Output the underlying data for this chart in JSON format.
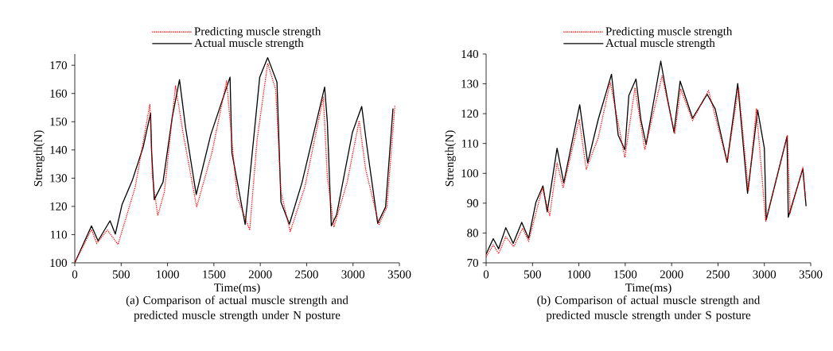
{
  "chart_data": [
    {
      "type": "line",
      "title": "(a) Comparison of actual muscle strength and predicted muscle strength under N posture",
      "xlabel": "Time(ms)",
      "ylabel": "Strength(N)",
      "xlim": [
        0,
        3500
      ],
      "xticks": [
        0,
        500,
        1000,
        1500,
        2000,
        2500,
        3000,
        3500
      ],
      "ylim": [
        100,
        174
      ],
      "yticks": [
        100,
        110,
        120,
        130,
        140,
        150,
        160,
        170
      ],
      "legend": "top",
      "series": [
        {
          "name": "Predicting muscle strength",
          "color": "#ff0000",
          "line_style": "dotted",
          "x": [
            0,
            180,
            237,
            351,
            466,
            651,
            809,
            837,
            894,
            966,
            1086,
            1166,
            1314,
            1480,
            1637,
            1680,
            1751,
            1886,
            1966,
            2080,
            2166,
            2223,
            2323,
            2480,
            2680,
            2723,
            2794,
            2937,
            3066,
            3137,
            3280,
            3366,
            3451
          ],
          "values": [
            100,
            111.8,
            106.9,
            111.6,
            106.5,
            126.8,
            156.1,
            130.4,
            116.7,
            125.1,
            162.7,
            146.3,
            119.8,
            139.2,
            164.5,
            148.1,
            123.3,
            111.6,
            143.7,
            170.7,
            161.4,
            125.1,
            111.1,
            126.8,
            158.7,
            130.4,
            112.7,
            128.6,
            150.3,
            133,
            113.6,
            119.8,
            155.6
          ]
        },
        {
          "name": "Actual muscle strength",
          "color": "#000000",
          "line_style": "solid",
          "x": [
            0,
            180,
            251,
            380,
            437,
            509,
            623,
            737,
            817,
            829,
            857,
            951,
            1051,
            1129,
            1194,
            1309,
            1466,
            1674,
            1694,
            1837,
            1994,
            2080,
            2180,
            2223,
            2314,
            2451,
            2694,
            2723,
            2766,
            2823,
            2994,
            3094,
            3151,
            3266,
            3351,
            3431
          ],
          "values": [
            100,
            113.1,
            107.8,
            114.9,
            110.2,
            120.6,
            129.5,
            141,
            153,
            139,
            122.4,
            128.6,
            151.6,
            164.9,
            148,
            124.2,
            145.4,
            165.8,
            139,
            113.6,
            165.8,
            172.7,
            164,
            121.5,
            113.7,
            128.6,
            162.3,
            149.9,
            113.1,
            117.1,
            146.3,
            155.4,
            141,
            114,
            119.8,
            154.7
          ]
        }
      ]
    },
    {
      "type": "line",
      "title": "(b) Comparison of actual muscle strength and predicted muscle strength under S posture",
      "xlabel": "Time(ms)",
      "ylabel": "Strength(N)",
      "xlim": [
        0,
        3500
      ],
      "xticks": [
        0,
        500,
        1000,
        1500,
        2000,
        2500,
        3000,
        3500
      ],
      "ylim": [
        70,
        140
      ],
      "yticks": [
        70,
        80,
        90,
        100,
        110,
        120,
        130,
        140
      ],
      "legend": "top",
      "series": [
        {
          "name": "Predicting muscle strength",
          "color": "#ff0000",
          "line_style": "dotted",
          "x": [
            0,
            77,
            135,
            212,
            298,
            393,
            458,
            607,
            685,
            765,
            831,
            1003,
            1080,
            1209,
            1338,
            1496,
            1605,
            1711,
            1897,
            2034,
            2097,
            2226,
            2398,
            2599,
            2722,
            2828,
            2914,
            3014,
            3249,
            3278,
            3415,
            3444
          ],
          "values": [
            72,
            76,
            73.1,
            78.7,
            75.4,
            81.6,
            77.2,
            95.1,
            85.8,
            103.5,
            95.1,
            118.1,
            101.4,
            111.9,
            130.5,
            105.3,
            128.7,
            107.9,
            132.7,
            113.2,
            128.3,
            117.7,
            127.8,
            103.7,
            128.7,
            94.2,
            121.6,
            84,
            112.8,
            86.7,
            102,
            91.5
          ]
        },
        {
          "name": "Actual muscle strength",
          "color": "#000000",
          "line_style": "solid",
          "x": [
            0,
            77,
            135,
            212,
            292,
            384,
            458,
            536,
            613,
            659,
            765,
            837,
            1009,
            1095,
            1209,
            1352,
            1424,
            1496,
            1539,
            1616,
            1668,
            1725,
            1883,
            1954,
            2026,
            2092,
            2226,
            2384,
            2470,
            2599,
            2713,
            2819,
            2928,
            3000,
            3020,
            3244,
            3258,
            3415,
            3450
          ],
          "values": [
            72.9,
            78.1,
            74.7,
            81.8,
            76.5,
            83.6,
            78.2,
            90.2,
            95.8,
            87.1,
            108.4,
            96.8,
            123,
            103.5,
            118.1,
            133.2,
            112.8,
            107.9,
            126.1,
            131.6,
            118.1,
            109.7,
            137.6,
            125.2,
            113.8,
            130.9,
            118.5,
            126.5,
            121.6,
            103.7,
            130.1,
            93.3,
            121.2,
            108.4,
            84.4,
            112.3,
            85.3,
            101.5,
            89
          ]
        }
      ]
    }
  ]
}
